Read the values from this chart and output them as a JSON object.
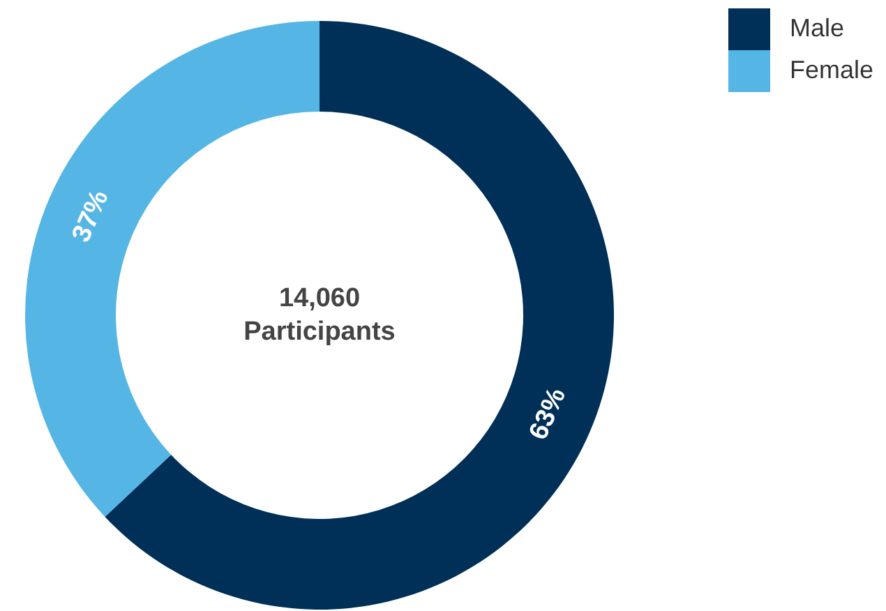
{
  "chart_data": {
    "type": "donut",
    "categories": [
      "Male",
      "Female"
    ],
    "values": [
      63,
      37
    ],
    "colors": [
      "#003057",
      "#55b5e5"
    ],
    "value_labels": [
      "63%",
      "37%"
    ],
    "legend": "top right",
    "annotations": [
      "14,060",
      "Participants"
    ]
  }
}
